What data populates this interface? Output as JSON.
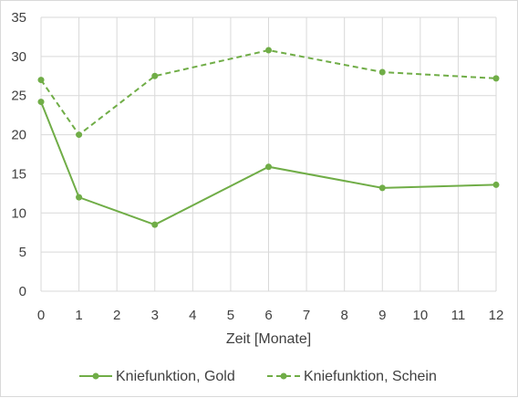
{
  "chart_data": {
    "type": "line",
    "x": [
      0,
      1,
      3,
      6,
      9,
      12
    ],
    "xlabel": "Zeit [Monate]",
    "ylabel": "",
    "xlim": [
      0,
      12
    ],
    "ylim": [
      0,
      35
    ],
    "x_ticks": [
      "0",
      "1",
      "2",
      "3",
      "4",
      "5",
      "6",
      "7",
      "8",
      "9",
      "10",
      "11",
      "12"
    ],
    "y_ticks": [
      "0",
      "5",
      "10",
      "15",
      "20",
      "25",
      "30",
      "35"
    ],
    "grid": "horizontal and vertical",
    "legend_position": "bottom",
    "series": [
      {
        "name": "Kniefunktion, Gold",
        "values": [
          24.2,
          12.0,
          8.5,
          15.9,
          13.2,
          13.6
        ],
        "color": "#70ad47",
        "line_style": "solid"
      },
      {
        "name": "Kniefunktion, Schein",
        "values": [
          27.0,
          20.0,
          27.5,
          30.8,
          28.0,
          27.2
        ],
        "color": "#70ad47",
        "line_style": "dashed"
      }
    ]
  }
}
